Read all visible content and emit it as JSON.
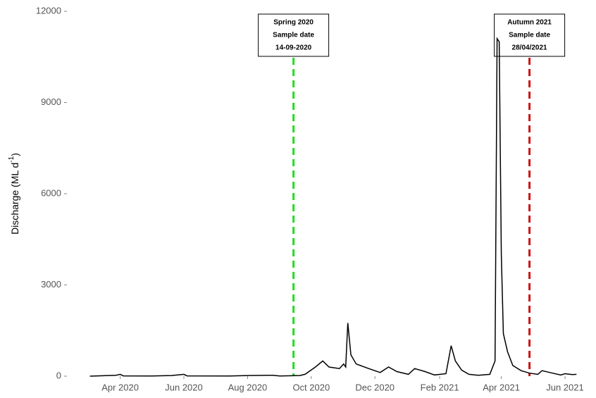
{
  "chart_data": {
    "type": "line",
    "y_label": [
      "Discharge (ML d",
      "-1",
      ")"
    ],
    "x": [
      "2020-03-03",
      "2020-03-28",
      "2020-04-01",
      "2020-04-04",
      "2020-05-01",
      "2020-05-20",
      "2020-06-01",
      "2020-06-04",
      "2020-07-15",
      "2020-08-01",
      "2020-08-25",
      "2020-09-01",
      "2020-09-20",
      "2020-09-25",
      "2020-10-05",
      "2020-10-12",
      "2020-10-18",
      "2020-10-28",
      "2020-11-01",
      "2020-11-03",
      "2020-11-05",
      "2020-11-08",
      "2020-11-13",
      "2020-11-25",
      "2020-12-06",
      "2020-12-14",
      "2020-12-22",
      "2021-01-02",
      "2021-01-08",
      "2021-01-18",
      "2021-01-27",
      "2021-02-07",
      "2021-02-12",
      "2021-02-16",
      "2021-02-22",
      "2021-03-01",
      "2021-03-10",
      "2021-03-21",
      "2021-03-26",
      "2021-03-28",
      "2021-03-30",
      "2021-04-01",
      "2021-04-03",
      "2021-04-07",
      "2021-04-12",
      "2021-04-20",
      "2021-04-28",
      "2021-05-06",
      "2021-05-10",
      "2021-05-20",
      "2021-05-28",
      "2021-06-01",
      "2021-06-08",
      "2021-06-12"
    ],
    "values": [
      0,
      30,
      60,
      10,
      5,
      20,
      60,
      10,
      5,
      20,
      30,
      5,
      20,
      60,
      300,
      500,
      300,
      250,
      400,
      300,
      1750,
      700,
      400,
      250,
      120,
      300,
      150,
      60,
      250,
      150,
      40,
      80,
      1000,
      500,
      200,
      60,
      30,
      60,
      500,
      11100,
      11000,
      4000,
      1400,
      800,
      350,
      180,
      100,
      60,
      180,
      100,
      40,
      80,
      50,
      60
    ],
    "color": "#000000",
    "xlim": [
      "2020-02-10",
      "2021-06-28"
    ],
    "xticks": [
      {
        "value": "2020-04-01",
        "label": "Apr 2020"
      },
      {
        "value": "2020-06-01",
        "label": "Jun 2020"
      },
      {
        "value": "2020-08-01",
        "label": "Aug 2020"
      },
      {
        "value": "2020-10-01",
        "label": "Oct 2020"
      },
      {
        "value": "2020-12-01",
        "label": "Dec 2020"
      },
      {
        "value": "2021-02-01",
        "label": "Feb 2021"
      },
      {
        "value": "2021-04-01",
        "label": "Apr 2021"
      },
      {
        "value": "2021-06-01",
        "label": "Jun 2021"
      }
    ],
    "ylim": [
      0,
      12000
    ],
    "yticks": [
      0,
      3000,
      6000,
      9000,
      12000
    ],
    "annotations": [
      {
        "x": "2020-09-14",
        "lines": [
          "Spring 2020",
          "Sample date",
          "14-09-2020"
        ],
        "color": "#22dd22"
      },
      {
        "x": "2021-04-28",
        "lines": [
          "Autumn 2021",
          "Sample date",
          "28/04/2021"
        ],
        "color": "#cc1111"
      }
    ]
  }
}
